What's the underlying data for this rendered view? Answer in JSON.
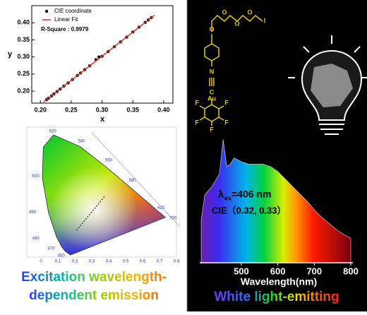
{
  "chart_data": [
    {
      "type": "scatter",
      "xlabel": "x",
      "ylabel": "y",
      "xlim": [
        0.186,
        0.415
      ],
      "ylim": [
        0.165,
        0.45
      ],
      "xticks": [
        {
          "value": 0.2,
          "label": "0.20"
        },
        0.25,
        {
          "value": 0.3,
          "label": "0.30"
        },
        0.35,
        {
          "value": 0.4,
          "label": "0.40"
        }
      ],
      "yticks": [
        {
          "value": 0.2,
          "label": "0.20"
        },
        0.25,
        {
          "value": 0.3,
          "label": "0.30"
        },
        0.35,
        {
          "value": 0.4,
          "label": "0.40"
        }
      ],
      "series": [
        {
          "name": "CIE coordinate",
          "color": "#111111",
          "mode": "markers",
          "x": [
            0.21,
            0.213,
            0.218,
            0.222,
            0.227,
            0.232,
            0.238,
            0.245,
            0.252,
            0.26,
            0.265,
            0.272,
            0.28,
            0.29,
            0.295,
            0.3,
            0.31,
            0.32,
            0.33,
            0.34,
            0.35,
            0.36,
            0.37,
            0.375,
            0.38
          ],
          "values": [
            0.175,
            0.179,
            0.186,
            0.192,
            0.199,
            0.206,
            0.215,
            0.224,
            0.234,
            0.246,
            0.253,
            0.263,
            0.274,
            0.292,
            0.3,
            0.302,
            0.316,
            0.33,
            0.344,
            0.358,
            0.373,
            0.387,
            0.401,
            0.408,
            0.415
          ]
        },
        {
          "name": "Linear Fit",
          "color": "#e0301e",
          "mode": "line",
          "x": [
            0.205,
            0.385
          ],
          "values": [
            0.168,
            0.422
          ]
        }
      ],
      "annotation": "R-Square : 0.9979"
    },
    {
      "type": "area",
      "xlabel": "Wavelength(nm)",
      "xlim": [
        386,
        800
      ],
      "ylim": [
        0,
        1.1
      ],
      "xticks": [
        500,
        600,
        700,
        800
      ],
      "x": [
        390,
        400,
        420,
        440,
        450,
        460,
        470,
        480,
        500,
        520,
        540,
        560,
        580,
        600,
        620,
        640,
        660,
        680,
        700,
        720,
        740,
        760,
        780,
        800
      ],
      "values": [
        0.35,
        0.55,
        0.62,
        0.72,
        1.0,
        0.78,
        0.8,
        0.85,
        0.82,
        0.8,
        0.8,
        0.8,
        0.78,
        0.74,
        0.68,
        0.62,
        0.56,
        0.5,
        0.43,
        0.37,
        0.32,
        0.27,
        0.23,
        0.2
      ],
      "annotation": {
        "lambda": "λ",
        "sub": "ex",
        "text": "=406 nm",
        "cie": "CIE（0.32,   0.33）"
      }
    }
  ],
  "cie_diagram": {
    "xticks": [
      "0",
      "0.1",
      "0.2",
      "0.3",
      "0.4",
      "0.5",
      "0.6",
      "0.7",
      "0.8"
    ],
    "wavelengths": [
      "520",
      "540",
      "500",
      "560",
      "490",
      "580",
      "620",
      "700",
      "480",
      "470",
      "460"
    ]
  },
  "molecule": {
    "atoms": [
      "O",
      "O",
      "O",
      "O",
      "I",
      "N",
      "C",
      "Au",
      "F",
      "F",
      "F",
      "F",
      "F"
    ]
  },
  "captions": {
    "left": [
      "Excitation wavelength-",
      "dependent emission"
    ],
    "right": "White light-emitting"
  }
}
